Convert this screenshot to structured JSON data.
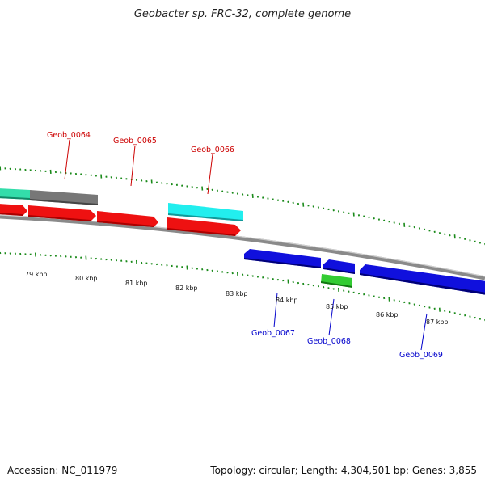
{
  "title": "Geobacter sp. FRC-32, complete genome",
  "footer": {
    "accession": "Accession: NC_011979",
    "summary": "Topology: circular; Length: 4,304,501 bp; Genes: 3,855"
  },
  "colors": {
    "background": "#ffffff",
    "backbone": "#8a8a8a",
    "tick": "#1a8a1a",
    "label_forward": "#cc0000",
    "label_reverse": "#0000cc",
    "feature_red": "#ee1111",
    "feature_blue": "#1010dd",
    "feature_cyan": "#22eeee",
    "feature_green": "#33cc33",
    "feature_gray": "#777777",
    "feature_teal": "#33ddaa"
  },
  "kbp_labels": [
    "79 kbp",
    "80 kbp",
    "81 kbp",
    "82 kbp",
    "83 kbp",
    "84 kbp",
    "85 kbp",
    "86 kbp",
    "87 kbp"
  ],
  "gene_labels": {
    "forward": [
      "Geob_0064",
      "Geob_0065",
      "Geob_0066"
    ],
    "reverse": [
      "Geob_0067",
      "Geob_0068",
      "Geob_0069"
    ]
  }
}
